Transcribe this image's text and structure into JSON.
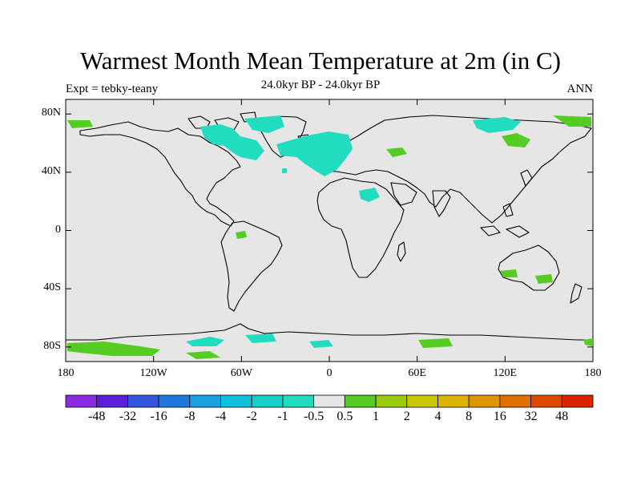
{
  "title": "Warmest Month Mean Temperature at 2m (in C)",
  "subtitle": "24.0kyr BP - 24.0kyr BP",
  "left_label": "Expt = tebky-teany",
  "right_label": "ANN",
  "map": {
    "projection": "cylindrical-equidistant",
    "lon_range": [
      -180,
      180
    ],
    "lat_range": [
      -90,
      90
    ],
    "background_color": "#e6e6e6",
    "lat_ticks": [
      {
        "value": 80,
        "label": "80N"
      },
      {
        "value": 40,
        "label": "40N"
      },
      {
        "value": 0,
        "label": "0"
      },
      {
        "value": -40,
        "label": "40S"
      },
      {
        "value": -80,
        "label": "80S"
      }
    ],
    "lon_ticks": [
      {
        "value": -180,
        "label": "180"
      },
      {
        "value": -120,
        "label": "120W"
      },
      {
        "value": -60,
        "label": "60W"
      },
      {
        "value": 0,
        "label": "0"
      },
      {
        "value": 60,
        "label": "60E"
      },
      {
        "value": 120,
        "label": "120E"
      },
      {
        "value": 180,
        "label": "180"
      }
    ]
  },
  "colorbar": {
    "colors": [
      "#8a2be2",
      "#5a1fd8",
      "#3355dd",
      "#1e78e0",
      "#1aa0e0",
      "#10c0dc",
      "#16cfc8",
      "#22dcc0",
      "#e6e6e6",
      "#55cc22",
      "#99cc11",
      "#c8c800",
      "#ddb300",
      "#e09500",
      "#e07000",
      "#e04a00",
      "#dd2200"
    ],
    "labels": [
      "-48",
      "-32",
      "-16",
      "-8",
      "-4",
      "-2",
      "-1",
      "-0.5",
      "0.5",
      "1",
      "2",
      "4",
      "8",
      "16",
      "32",
      "48"
    ]
  }
}
